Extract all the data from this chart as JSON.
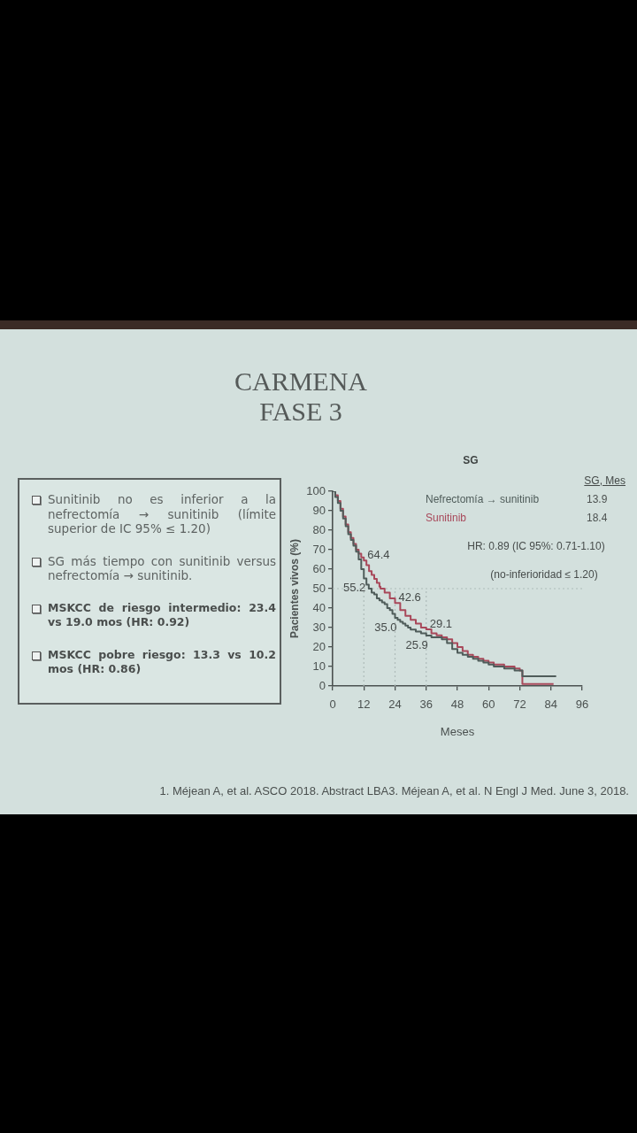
{
  "chart_data": [
    {
      "type": "other",
      "title": "CARMENA FASE 3",
      "annotations": [
        "Sunitinib no es inferior a la nefrectomía → sunitinib (límite superior de IC 95% ≤ 1.20)",
        "SG más tiempo con sunitinib versus nefrectomía → sunitinib.",
        "MSKCC de riesgo intermedio: 23.4 vs 19.0 mos (HR: 0.92)",
        "MSKCC pobre riesgo: 13.3 vs 10.2 mos (HR: 0.86)"
      ]
    },
    {
      "type": "step",
      "title": "SG",
      "xlabel": "Meses",
      "ylabel": "Pacientes vivos (%)",
      "legend_title": "SG, Mes",
      "legend": "top right",
      "grid": false,
      "xlim": [
        0,
        96
      ],
      "xticks": [
        0,
        12,
        24,
        36,
        48,
        60,
        72,
        84,
        96
      ],
      "ylim": [
        0,
        100
      ],
      "yticks": [
        0,
        10,
        20,
        30,
        40,
        50,
        60,
        70,
        80,
        90,
        100
      ],
      "series": [
        {
          "name": "Nefrectomía → sunitinib",
          "color": "#4f5c5a",
          "x": [
            0,
            1,
            2,
            3,
            4,
            5,
            6,
            7,
            8,
            9,
            10,
            11,
            12,
            13,
            13.9,
            15,
            16,
            17,
            18,
            19,
            20,
            21,
            22,
            23,
            24,
            25,
            26,
            27,
            28,
            29,
            30,
            32,
            34,
            36,
            38,
            40,
            42,
            44,
            46,
            48,
            50,
            52,
            54,
            56,
            58,
            60,
            62,
            64,
            66,
            68,
            70,
            72,
            73,
            86
          ],
          "values": [
            100,
            97,
            94,
            90,
            86,
            82,
            78,
            75,
            72,
            69,
            65,
            60,
            55.2,
            52,
            50,
            48,
            47,
            45,
            44,
            43,
            42,
            40,
            39,
            37,
            35,
            34,
            33,
            32,
            31,
            30,
            29,
            28,
            27,
            25.9,
            25,
            25,
            24,
            22,
            19,
            17,
            16,
            15,
            14,
            13,
            12,
            11,
            10,
            10,
            9,
            9,
            8,
            8,
            5,
            5
          ],
          "value_labels": [
            null,
            null,
            null,
            null,
            null,
            null,
            null,
            null,
            null,
            null,
            null,
            null,
            "55.2",
            null,
            null,
            null,
            null,
            null,
            null,
            null,
            null,
            null,
            null,
            null,
            "35.0",
            null,
            null,
            null,
            null,
            null,
            null,
            null,
            null,
            "25.9",
            null,
            null,
            null,
            null,
            null,
            null,
            null,
            null,
            null,
            null,
            null,
            null,
            null,
            null,
            null,
            null,
            null,
            null,
            null,
            null
          ]
        },
        {
          "name": "Sunitinib",
          "color": "#a8485a",
          "x": [
            0,
            1,
            2,
            3,
            4,
            5,
            6,
            7,
            8,
            9,
            10,
            11,
            12,
            13,
            14,
            15,
            16,
            17,
            18,
            18.4,
            20,
            22,
            24,
            26,
            28,
            30,
            32,
            34,
            36,
            38,
            40,
            42,
            44,
            46,
            48,
            50,
            52,
            54,
            56,
            58,
            60,
            62,
            64,
            66,
            68,
            70,
            72,
            73,
            85
          ],
          "values": [
            100,
            98,
            95,
            91,
            87,
            83,
            79,
            76,
            73,
            70,
            68,
            66,
            64.4,
            62,
            59,
            57,
            55,
            53,
            51,
            50,
            48,
            45,
            42.6,
            39,
            36,
            34,
            32,
            30,
            29.1,
            27,
            26,
            25,
            24,
            22,
            20,
            18,
            16,
            15,
            14,
            13,
            12,
            11,
            11,
            10,
            10,
            9,
            8,
            1,
            1
          ],
          "value_labels": [
            null,
            null,
            null,
            null,
            null,
            null,
            null,
            null,
            null,
            null,
            null,
            null,
            "64.4",
            null,
            null,
            null,
            null,
            null,
            null,
            null,
            null,
            null,
            "42.6",
            null,
            null,
            null,
            null,
            null,
            "29.1",
            null,
            null,
            null,
            null,
            null,
            null,
            null,
            null,
            null,
            null,
            null,
            null,
            null,
            null,
            null,
            null,
            null,
            null,
            null,
            null
          ]
        }
      ],
      "ref_lines": [
        {
          "axis": "y",
          "value": 50,
          "color": "#aebbb9",
          "line_style": "dotted"
        },
        {
          "axis": "x",
          "value": 12,
          "color": "#aebbb9",
          "line_style": "dotted"
        },
        {
          "axis": "x",
          "value": 24,
          "color": "#aebbb9",
          "line_style": "dotted"
        },
        {
          "axis": "x",
          "value": 36,
          "color": "#aebbb9",
          "line_style": "dotted"
        }
      ],
      "annotations": [
        "13.9",
        "18.4",
        "HR: 0.89 (IC 95%: 0.71-1.10)",
        "(no-inferioridad ≤ 1.20)",
        "1. Méjean A, et al. ASCO 2018. Abstract LBA3. Méjean A, et al. N Engl J Med. June 3, 2018."
      ]
    }
  ]
}
